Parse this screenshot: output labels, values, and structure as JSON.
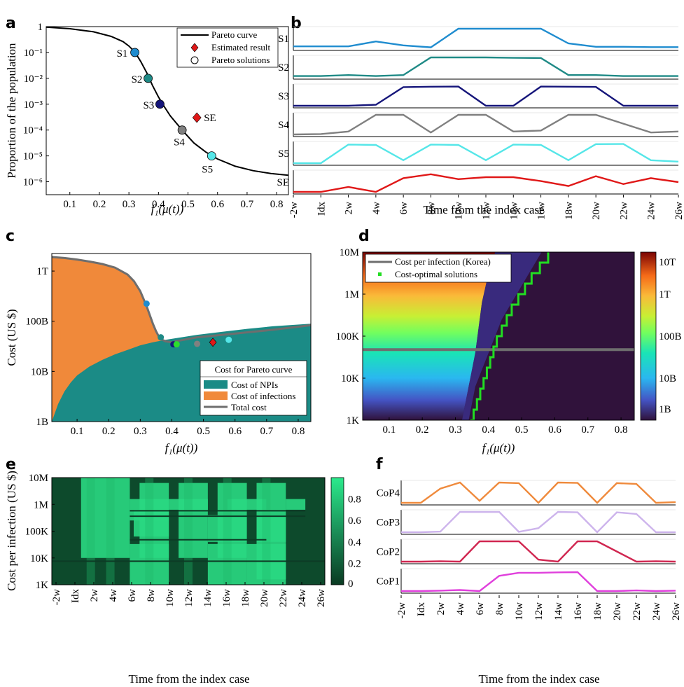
{
  "panels": {
    "a": "a",
    "b": "b",
    "c": "c",
    "d": "d",
    "e": "e",
    "f": "f"
  },
  "time_ticks": [
    "-2w",
    "Idx",
    "2w",
    "4w",
    "6w",
    "8w",
    "10w",
    "12w",
    "14w",
    "16w",
    "18w",
    "20w",
    "22w",
    "24w",
    "26w"
  ],
  "chart_data": [
    {
      "id": "a",
      "type": "line",
      "xlabel": "f₁(μ(t))",
      "ylabel": "Proportion of the population",
      "xlim": [
        0.02,
        0.84
      ],
      "ylim_log10": [
        -6.5,
        0
      ],
      "xticks": [
        "0.1",
        "0.2",
        "0.3",
        "0.4",
        "0.5",
        "0.6",
        "0.7",
        "0.8"
      ],
      "yticks": [
        "1",
        "10⁻¹",
        "10⁻²",
        "10⁻³",
        "10⁻⁴",
        "10⁻⁵",
        "10⁻⁶"
      ],
      "legend": [
        "Pareto curve",
        "Estimated result",
        "Pareto solutions"
      ],
      "curve_x": [
        0.02,
        0.1,
        0.18,
        0.24,
        0.28,
        0.3,
        0.32,
        0.34,
        0.36,
        0.38,
        0.4,
        0.42,
        0.44,
        0.48,
        0.52,
        0.56,
        0.6,
        0.66,
        0.72,
        0.78,
        0.84
      ],
      "curve_log10y": [
        -0.02,
        -0.08,
        -0.2,
        -0.38,
        -0.58,
        -0.75,
        -0.98,
        -1.35,
        -1.78,
        -2.28,
        -2.72,
        -3.1,
        -3.45,
        -4.0,
        -4.5,
        -4.85,
        -5.12,
        -5.4,
        -5.57,
        -5.68,
        -5.75
      ],
      "points": [
        {
          "label": "S1",
          "x": 0.32,
          "log10y": -1.0,
          "color": "#1f8ccf"
        },
        {
          "label": "S2",
          "x": 0.365,
          "log10y": -2.0,
          "color": "#1f8a86"
        },
        {
          "label": "S3",
          "x": 0.405,
          "log10y": -3.0,
          "color": "#15157a"
        },
        {
          "label": "S4",
          "x": 0.48,
          "log10y": -4.0,
          "color": "#808080"
        },
        {
          "label": "S5",
          "x": 0.58,
          "log10y": -5.0,
          "color": "#55e6e8"
        }
      ],
      "estimate": {
        "label": "SE",
        "x": 0.53,
        "log10y": -3.52,
        "color": "#e01818"
      }
    },
    {
      "id": "b",
      "type": "line",
      "xlabel": "Time from the index case",
      "series": [
        {
          "name": "S1",
          "color": "#1f8ccf",
          "values": [
            0.1,
            0.1,
            0.1,
            0.35,
            0.15,
            0.05,
            1,
            1,
            1,
            1,
            0.25,
            0.08,
            0.08,
            0.06,
            0.06
          ]
        },
        {
          "name": "S2",
          "color": "#1f8a86",
          "values": [
            0.05,
            0.05,
            0.1,
            0.05,
            0.1,
            1,
            1,
            1,
            0.98,
            0.97,
            0.1,
            0.1,
            0.05,
            0.05,
            0.05
          ]
        },
        {
          "name": "S3",
          "color": "#15157a",
          "values": [
            0,
            0,
            0,
            0.05,
            0.95,
            0.97,
            0.98,
            0,
            0,
            0.98,
            0.97,
            0.96,
            0,
            0,
            0
          ]
        },
        {
          "name": "S4",
          "color": "#808080",
          "values": [
            0,
            0.02,
            0.15,
            1,
            1,
            0.1,
            1,
            1,
            0.15,
            0.2,
            1,
            1,
            0.55,
            0.1,
            0.15
          ]
        },
        {
          "name": "S5",
          "color": "#55e6e8",
          "values": [
            0,
            0,
            0.95,
            0.93,
            0.15,
            0.95,
            0.93,
            0.15,
            0.95,
            0.93,
            0.15,
            0.97,
            0.98,
            0.15,
            0.08
          ]
        },
        {
          "name": "SE",
          "color": "#e01818",
          "values": [
            0,
            0,
            0.25,
            0,
            0.7,
            0.9,
            0.65,
            0.75,
            0.75,
            0.55,
            0.3,
            0.8,
            0.4,
            0.7,
            0.5
          ]
        }
      ]
    },
    {
      "id": "c",
      "type": "area",
      "xlabel": "f₁(μ(t))",
      "ylabel": "Cost (US $)",
      "xlim": [
        0.02,
        0.84
      ],
      "ylim_log10": [
        9,
        12.35
      ],
      "xticks": [
        "0.1",
        "0.2",
        "0.3",
        "0.4",
        "0.5",
        "0.6",
        "0.7",
        "0.8"
      ],
      "yticks": [
        "1B",
        "10B",
        "100B",
        "1T"
      ],
      "legend_title": "Cost for Pareto curve",
      "legend": [
        "Cost of NPIs",
        "Cost of infections",
        "Total cost"
      ],
      "npi_x": [
        0.02,
        0.04,
        0.06,
        0.08,
        0.1,
        0.14,
        0.18,
        0.22,
        0.26,
        0.3,
        0.34,
        0.38,
        0.42,
        0.48,
        0.56,
        0.64,
        0.72,
        0.84
      ],
      "npi_log10": [
        9.0,
        9.35,
        9.6,
        9.78,
        9.92,
        10.1,
        10.23,
        10.34,
        10.43,
        10.52,
        10.58,
        10.63,
        10.67,
        10.73,
        10.79,
        10.85,
        10.9,
        10.95
      ],
      "total_x": [
        0.02,
        0.06,
        0.1,
        0.14,
        0.18,
        0.22,
        0.26,
        0.28,
        0.3,
        0.32,
        0.34,
        0.35,
        0.36,
        0.37,
        0.38,
        0.4,
        0.42,
        0.48,
        0.56,
        0.64,
        0.72,
        0.84
      ],
      "total_log10": [
        12.28,
        12.26,
        12.23,
        12.19,
        12.14,
        12.07,
        11.93,
        11.8,
        11.6,
        11.3,
        10.95,
        10.8,
        10.68,
        10.63,
        10.6,
        10.58,
        10.61,
        10.68,
        10.73,
        10.78,
        10.83,
        10.92
      ],
      "points": [
        {
          "x": 0.32,
          "log10y": 11.35,
          "color": "#1f8ccf"
        },
        {
          "x": 0.365,
          "log10y": 10.68,
          "color": "#1f8a86"
        },
        {
          "x": 0.405,
          "log10y": 10.54,
          "color": "#15157a"
        },
        {
          "x": 0.415,
          "log10y": 10.54,
          "color": "#2ddc2d"
        },
        {
          "x": 0.48,
          "log10y": 10.55,
          "color": "#808080"
        },
        {
          "x": 0.58,
          "log10y": 10.63,
          "color": "#55e6e8"
        }
      ],
      "estimate": {
        "x": 0.53,
        "log10y": 10.58,
        "color": "#e01818"
      }
    },
    {
      "id": "d",
      "type": "heatmap",
      "xlabel": "f₁(μ(t))",
      "xlim": [
        0.02,
        0.84
      ],
      "ylim_log10": [
        3,
        7
      ],
      "xticks": [
        "0.1",
        "0.2",
        "0.3",
        "0.4",
        "0.5",
        "0.6",
        "0.7",
        "0.8"
      ],
      "yticks": [
        "1K",
        "10K",
        "100K",
        "1M",
        "10M"
      ],
      "colorbar": [
        "1B",
        "10B",
        "100B",
        "1T",
        "10T"
      ],
      "legend": [
        "Cost per infection (Korea)",
        "Cost-optimal solutions"
      ],
      "korea_log10": 4.68,
      "optimal_log10": [
        3.0,
        3.25,
        3.5,
        3.75,
        4.0,
        4.25,
        4.5,
        4.75,
        5.0,
        5.25,
        5.5,
        5.75,
        6.0,
        6.25,
        6.5,
        6.75,
        7.0
      ],
      "optimal_x": [
        0.345,
        0.355,
        0.365,
        0.375,
        0.385,
        0.395,
        0.405,
        0.415,
        0.425,
        0.44,
        0.455,
        0.47,
        0.49,
        0.51,
        0.53,
        0.555,
        0.58
      ]
    },
    {
      "id": "e",
      "type": "heatmap",
      "xlabel": "Time from the index case",
      "ylabel": "Cost per infection (US $)",
      "yticks": [
        "1K",
        "10K",
        "100K",
        "1M",
        "10M"
      ],
      "colorbar": [
        "0",
        "0.2",
        "0.4",
        "0.6",
        "0.8"
      ]
    },
    {
      "id": "f",
      "type": "line",
      "xlabel": "Time from the index case",
      "series": [
        {
          "name": "CoP4",
          "color": "#ef8a3c",
          "values": [
            0,
            0,
            0.7,
            1,
            0.1,
            1,
            0.97,
            0,
            1,
            0.98,
            0,
            0.97,
            0.93,
            0,
            0.03
          ]
        },
        {
          "name": "CoP3",
          "color": "#cdb4ec",
          "values": [
            0,
            0,
            0.03,
            1,
            1,
            1,
            0.02,
            0.2,
            1,
            0.98,
            0,
            0.98,
            0.9,
            0,
            0
          ]
        },
        {
          "name": "CoP2",
          "color": "#d02650",
          "values": [
            0,
            0,
            0.02,
            0,
            1,
            1,
            1,
            0.1,
            0,
            1,
            1,
            0.5,
            0,
            0.02,
            0
          ]
        },
        {
          "name": "CoP1",
          "color": "#e040dc",
          "values": [
            0,
            0,
            0.02,
            0.05,
            0,
            0.75,
            0.9,
            0.9,
            0.92,
            0.93,
            0,
            0,
            0.03,
            0,
            0.02
          ]
        }
      ]
    }
  ]
}
